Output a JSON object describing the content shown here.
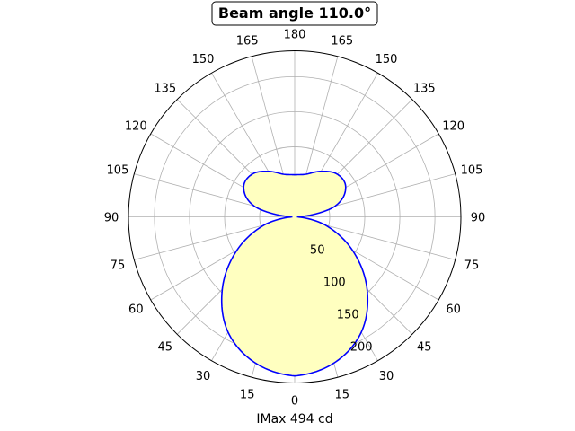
{
  "chart_data": {
    "type": "polar-line",
    "title": "Beam angle 110.0°",
    "xlabel": "IMax 494 cd",
    "angle_ticks": [
      "0",
      "15",
      "30",
      "45",
      "60",
      "75",
      "90",
      "105",
      "120",
      "135",
      "150",
      "165",
      "180",
      "165",
      "150",
      "135",
      "120",
      "105",
      "90",
      "75",
      "60",
      "45",
      "30",
      "15"
    ],
    "radial_ticks": [
      50,
      100,
      150,
      200
    ],
    "rlim": [
      0,
      237
    ],
    "angle_zero": "bottom",
    "grid": true,
    "series": [
      {
        "angles": [
          0,
          15,
          30,
          45,
          60,
          75,
          90,
          105,
          120,
          135,
          150,
          165,
          180
        ],
        "values": [
          227,
          216,
          190,
          146,
          95,
          45,
          5,
          60,
          84,
          86,
          75,
          63,
          60
        ],
        "mirrored": true,
        "line_color": "#0000ff",
        "fill_color": "#ffffc0"
      }
    ]
  }
}
